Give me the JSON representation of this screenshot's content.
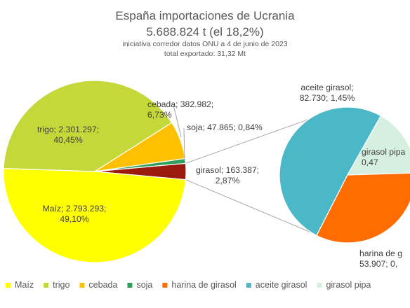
{
  "chart_data": {
    "type": "pie",
    "subtype": "pie-of-pie",
    "title": "España importaciones de Ucrania",
    "subtitle_lines": [
      "5.688.824 t (el 18,2%)",
      "iniciativa corredor datos ONU a 4 de junio de 2023",
      "total exportado: 31,32 Mt"
    ],
    "units": "t",
    "main_pie": [
      {
        "name": "Maíz",
        "value": 2793293,
        "percent": "49,10%",
        "color": "#ffff00"
      },
      {
        "name": "trigo",
        "value": 2301297,
        "percent": "40,45%",
        "color": "#c5d83a"
      },
      {
        "name": "cebada",
        "value": 382982,
        "percent": "6,73%",
        "color": "#ffc000"
      },
      {
        "name": "soja",
        "value": 47865,
        "percent": "0,84%",
        "color": "#2e9e5b"
      },
      {
        "name": "girasol",
        "value": 163387,
        "percent": "2,87%",
        "color": "#9a1a0e",
        "is_group": true
      }
    ],
    "secondary_pie": [
      {
        "name": "aceite girasol",
        "value": 82730,
        "percent": "1,45%",
        "color": "#4bb8c8"
      },
      {
        "name": "girasol pipa",
        "value": 26750,
        "percent": "0,47",
        "color": "#d6f0df"
      },
      {
        "name": "harina de girasol",
        "value": 53907,
        "percent": "0,",
        "color": "#ff6d00"
      }
    ],
    "legend": {
      "placement": "bottom",
      "entries": [
        {
          "name": "Maíz",
          "color": "#ffff00"
        },
        {
          "name": "trigo",
          "color": "#c5d83a"
        },
        {
          "name": "cebada",
          "color": "#ffc000"
        },
        {
          "name": "soja",
          "color": "#2e9e5b"
        },
        {
          "name": "harina de girasol",
          "color": "#ff6d00"
        },
        {
          "name": "aceite girasol",
          "color": "#4bb8c8"
        },
        {
          "name": "girasol pipa",
          "color": "#d6f0df"
        }
      ]
    },
    "data_labels": {
      "maiz": [
        "Maíz; 2.793.293;",
        "49,10%"
      ],
      "trigo": [
        "trigo; 2.301.297;",
        "40,45%"
      ],
      "cebada": [
        "cebada; 382.982;",
        "6,73%"
      ],
      "soja": [
        "soja; 47.865; 0,84%"
      ],
      "girasol": [
        "girasol; 163.387;",
        "2,87%"
      ],
      "aceite": [
        "aceite girasol;",
        "82.730; 1,45%"
      ],
      "pipa": [
        "girasol pipa",
        "0,47"
      ],
      "harina": [
        "harina de g",
        "53.907; 0,"
      ]
    }
  }
}
